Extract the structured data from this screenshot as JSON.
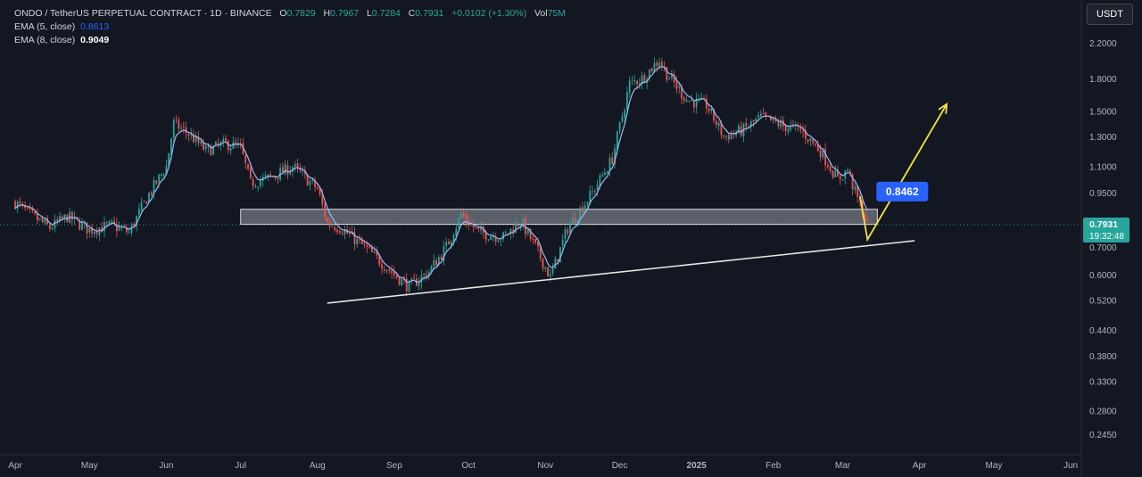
{
  "header": {
    "symbol": "ONDO / TetherUS PERPETUAL CONTRACT · 1D · BINANCE",
    "open_label": "O",
    "open": "0.7829",
    "high_label": "H",
    "high": "0.7967",
    "low_label": "L",
    "low": "0.7284",
    "close_label": "C",
    "close": "0.7931",
    "change": "+0.0102 (+1.30%)",
    "vol_label": "Vol",
    "vol": "75M"
  },
  "indicators": [
    {
      "label": "EMA (5, close)",
      "value": "0.8613",
      "color": "#2962ff"
    },
    {
      "label": "EMA (8, close)",
      "value": "0.9049",
      "color": "#ffffff"
    }
  ],
  "currency_button": "USDT",
  "colors": {
    "background": "#131722",
    "up": "#26a69a",
    "down": "#ef5350",
    "ema": "#9db8f0",
    "arrow": "#f5e342",
    "callout": "#2962ff",
    "price_label": "#26a69a"
  },
  "chart_data": {
    "type": "candlestick",
    "y_scale": "log",
    "ylim": [
      0.22,
      2.45
    ],
    "y_ticks": [
      "2.2000",
      "1.8000",
      "1.5000",
      "1.3000",
      "1.1000",
      "0.9500",
      "0.7000",
      "0.6000",
      "0.5200",
      "0.4400",
      "0.3800",
      "0.3300",
      "0.2800",
      "0.2450"
    ],
    "x_ticks": [
      "Apr",
      "May",
      "Jun",
      "Jul",
      "Aug",
      "Sep",
      "Oct",
      "Nov",
      "Dec",
      "2025",
      "Feb",
      "Mar",
      "Apr",
      "May",
      "Jun"
    ],
    "current_price": "0.7931",
    "countdown": "19:32:48",
    "callout": "0.8462",
    "price_path": [
      [
        "2024-04-01",
        0.9
      ],
      [
        "2024-04-07",
        0.84
      ],
      [
        "2024-04-15",
        0.78
      ],
      [
        "2024-04-22",
        0.83
      ],
      [
        "2024-05-01",
        0.77
      ],
      [
        "2024-05-10",
        0.79
      ],
      [
        "2024-05-17",
        0.76
      ],
      [
        "2024-05-24",
        0.92
      ],
      [
        "2024-06-01",
        1.1
      ],
      [
        "2024-06-04",
        1.4
      ],
      [
        "2024-06-10",
        1.32
      ],
      [
        "2024-06-17",
        1.2
      ],
      [
        "2024-06-25",
        1.25
      ],
      [
        "2024-07-01",
        1.22
      ],
      [
        "2024-07-05",
        1.0
      ],
      [
        "2024-07-14",
        1.04
      ],
      [
        "2024-07-22",
        1.1
      ],
      [
        "2024-08-01",
        0.97
      ],
      [
        "2024-08-05",
        0.8
      ],
      [
        "2024-08-10",
        0.78
      ],
      [
        "2024-08-20",
        0.7
      ],
      [
        "2024-09-01",
        0.6
      ],
      [
        "2024-09-07",
        0.56
      ],
      [
        "2024-09-15",
        0.61
      ],
      [
        "2024-09-22",
        0.7
      ],
      [
        "2024-09-28",
        0.84
      ],
      [
        "2024-10-05",
        0.76
      ],
      [
        "2024-10-15",
        0.74
      ],
      [
        "2024-10-22",
        0.81
      ],
      [
        "2024-10-28",
        0.7
      ],
      [
        "2024-11-03",
        0.59
      ],
      [
        "2024-11-10",
        0.78
      ],
      [
        "2024-11-20",
        0.95
      ],
      [
        "2024-11-28",
        1.15
      ],
      [
        "2024-12-05",
        1.75
      ],
      [
        "2024-12-10",
        1.8
      ],
      [
        "2024-12-17",
        2.0
      ],
      [
        "2024-12-20",
        1.85
      ],
      [
        "2024-12-28",
        1.6
      ],
      [
        "2025-01-05",
        1.55
      ],
      [
        "2025-01-12",
        1.3
      ],
      [
        "2025-01-20",
        1.35
      ],
      [
        "2025-01-27",
        1.45
      ],
      [
        "2025-02-05",
        1.38
      ],
      [
        "2025-02-12",
        1.35
      ],
      [
        "2025-02-20",
        1.2
      ],
      [
        "2025-02-27",
        1.02
      ],
      [
        "2025-03-03",
        1.08
      ],
      [
        "2025-03-06",
        0.95
      ],
      [
        "2025-03-09",
        0.86
      ],
      [
        "2025-03-11",
        0.79
      ]
    ],
    "support_zone": {
      "from": "2024-07-01",
      "to": "2025-03-15",
      "low": 0.795,
      "high": 0.865
    },
    "trendline": {
      "from": [
        "2024-08-05",
        0.511
      ],
      "to": [
        "2025-03-30",
        0.725
      ]
    },
    "projection": [
      [
        "2025-03-08",
        0.93
      ],
      [
        "2025-03-11",
        0.73
      ],
      [
        "2025-04-12",
        1.56
      ]
    ]
  }
}
